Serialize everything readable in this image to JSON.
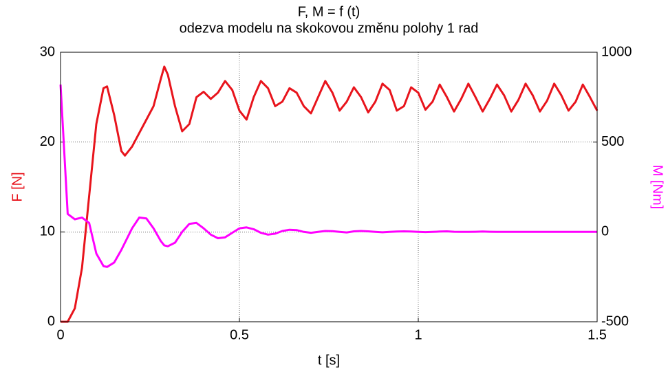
{
  "chart_data": {
    "type": "line",
    "title": "F, M = f (t)",
    "subtitle": "odezva modelu na skokovou změnu polohy 1 rad",
    "xlabel": "t [s]",
    "ylabel": "F [N]",
    "y2label": "M [Nm]",
    "x": [
      0,
      0.02,
      0.04,
      0.06,
      0.08,
      0.1,
      0.12,
      0.13,
      0.15,
      0.17,
      0.18,
      0.2,
      0.22,
      0.24,
      0.26,
      0.28,
      0.29,
      0.3,
      0.32,
      0.34,
      0.36,
      0.38,
      0.4,
      0.42,
      0.44,
      0.46,
      0.48,
      0.5,
      0.52,
      0.54,
      0.56,
      0.58,
      0.6,
      0.62,
      0.64,
      0.66,
      0.68,
      0.7,
      0.72,
      0.74,
      0.76,
      0.78,
      0.8,
      0.82,
      0.84,
      0.86,
      0.88,
      0.9,
      0.92,
      0.94,
      0.96,
      0.98,
      1.0,
      1.02,
      1.04,
      1.06,
      1.08,
      1.1,
      1.12,
      1.14,
      1.16,
      1.18,
      1.2,
      1.22,
      1.24,
      1.26,
      1.28,
      1.3,
      1.32,
      1.34,
      1.36,
      1.38,
      1.4,
      1.42,
      1.44,
      1.46,
      1.48,
      1.5
    ],
    "series": [
      {
        "name": "F",
        "color": "#e8141c",
        "axis": "y",
        "values": [
          0,
          0,
          1.5,
          6,
          14,
          22,
          26,
          26.2,
          23,
          19,
          18.5,
          19.5,
          21,
          22.5,
          24,
          27,
          28.4,
          27.5,
          24,
          21.2,
          22,
          25,
          25.6,
          24.8,
          25.5,
          26.8,
          25.8,
          23.5,
          22.5,
          25,
          26.8,
          26,
          24,
          24.5,
          26,
          25.5,
          24,
          23.2,
          25,
          26.8,
          25.5,
          23.5,
          24.5,
          26.1,
          25,
          23.3,
          24.5,
          26.5,
          25.8,
          23.5,
          24,
          26.1,
          25.5,
          23.6,
          24.5,
          26.4,
          25,
          23.4,
          24.8,
          26.5,
          25,
          23.4,
          24.8,
          26.4,
          25.2,
          23.4,
          24.7,
          26.5,
          25.2,
          23.4,
          24.6,
          26.5,
          25.2,
          23.5,
          24.5,
          26.4,
          25,
          23.5
        ]
      },
      {
        "name": "M",
        "color": "#ff00ff",
        "axis": "y2",
        "values": [
          820,
          100,
          70,
          80,
          50,
          -120,
          -190,
          -195,
          -170,
          -100,
          -60,
          20,
          80,
          75,
          20,
          -50,
          -75,
          -80,
          -60,
          0,
          45,
          50,
          20,
          -15,
          -35,
          -30,
          -5,
          20,
          25,
          15,
          -5,
          -15,
          -10,
          5,
          12,
          10,
          0,
          -5,
          0,
          5,
          4,
          0,
          -3,
          3,
          5,
          3,
          0,
          -2,
          0,
          2,
          3,
          2,
          0,
          -1,
          0,
          2,
          3,
          1,
          0,
          0,
          1,
          2,
          1,
          0,
          0,
          0,
          0,
          0,
          0,
          0,
          0,
          0,
          0,
          0,
          0,
          0,
          0,
          0
        ]
      }
    ],
    "xlim": [
      0,
      1.5
    ],
    "xticks": [
      0,
      0.5,
      1,
      1.5
    ],
    "ylim": [
      0,
      30
    ],
    "yticks": [
      0,
      10,
      20,
      30
    ],
    "y2lim": [
      -500,
      1000
    ],
    "y2ticks": [
      -500,
      0,
      500,
      1000
    ],
    "grid": true
  }
}
